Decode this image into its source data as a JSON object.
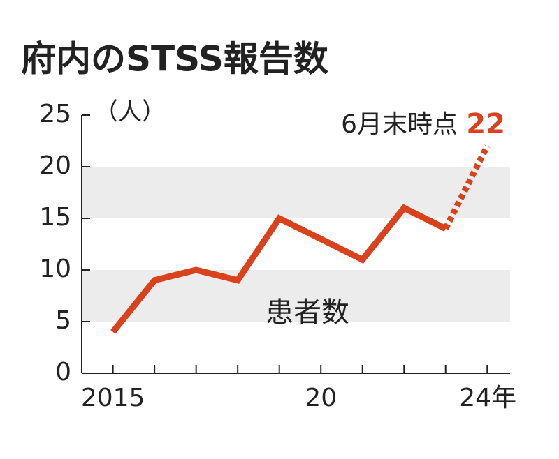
{
  "chart_data": {
    "type": "line",
    "title": "府内のSTSS報告数",
    "y_label": "（人）",
    "annotation": "6月末時点",
    "x": [
      2015,
      2016,
      2017,
      2018,
      2019,
      2020,
      2021,
      2022,
      2023,
      2024
    ],
    "series": [
      {
        "name": "患者数",
        "color": "#d9421c",
        "values": [
          4,
          9,
          10,
          9,
          15,
          13,
          11,
          16,
          14,
          22
        ],
        "last_segment_style": "dashed"
      }
    ],
    "xlim": [
      2014.25,
      2024.55
    ],
    "xticks": [
      2015,
      {
        "value": 2020,
        "label": "20"
      },
      {
        "value": 2024,
        "label": "24年"
      }
    ],
    "ylim": [
      0,
      25
    ],
    "yticks": [
      0,
      5,
      10,
      15,
      20,
      25
    ],
    "alternating_bands": true,
    "band_color": "#ececec"
  }
}
